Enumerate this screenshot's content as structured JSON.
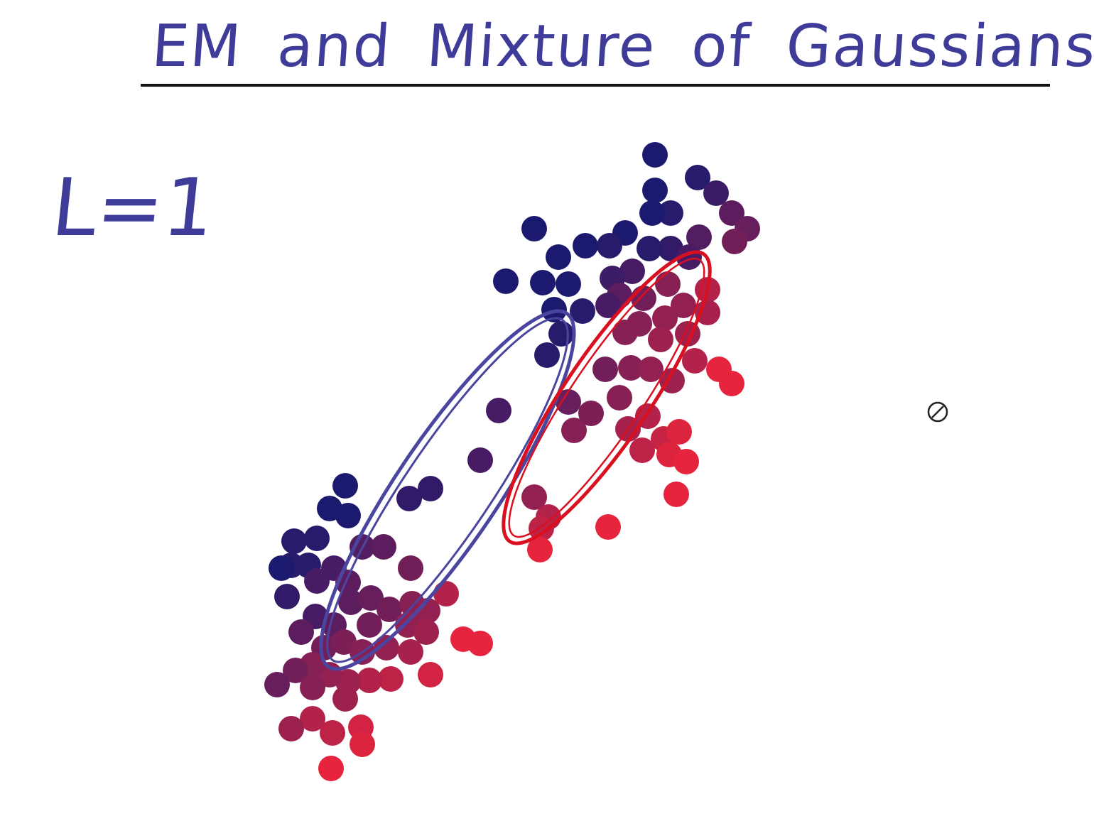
{
  "header": {
    "title": "EM and Mixture of Gaussians"
  },
  "diagram": {
    "label": "L=1",
    "colors": {
      "ink_blue": "#3e3c98",
      "cluster_blue": "#1c1a6e",
      "cluster_red": "#f2253a",
      "ellipse_blue": "#4a46a0",
      "ellipse_red": "#d81020"
    },
    "components": [
      {
        "color": "blue",
        "shape": "elongated-ellipse"
      },
      {
        "color": "red",
        "shape": "elongated-ellipse"
      }
    ]
  },
  "cursor": {
    "icon": "not-allowed-cursor-icon"
  }
}
